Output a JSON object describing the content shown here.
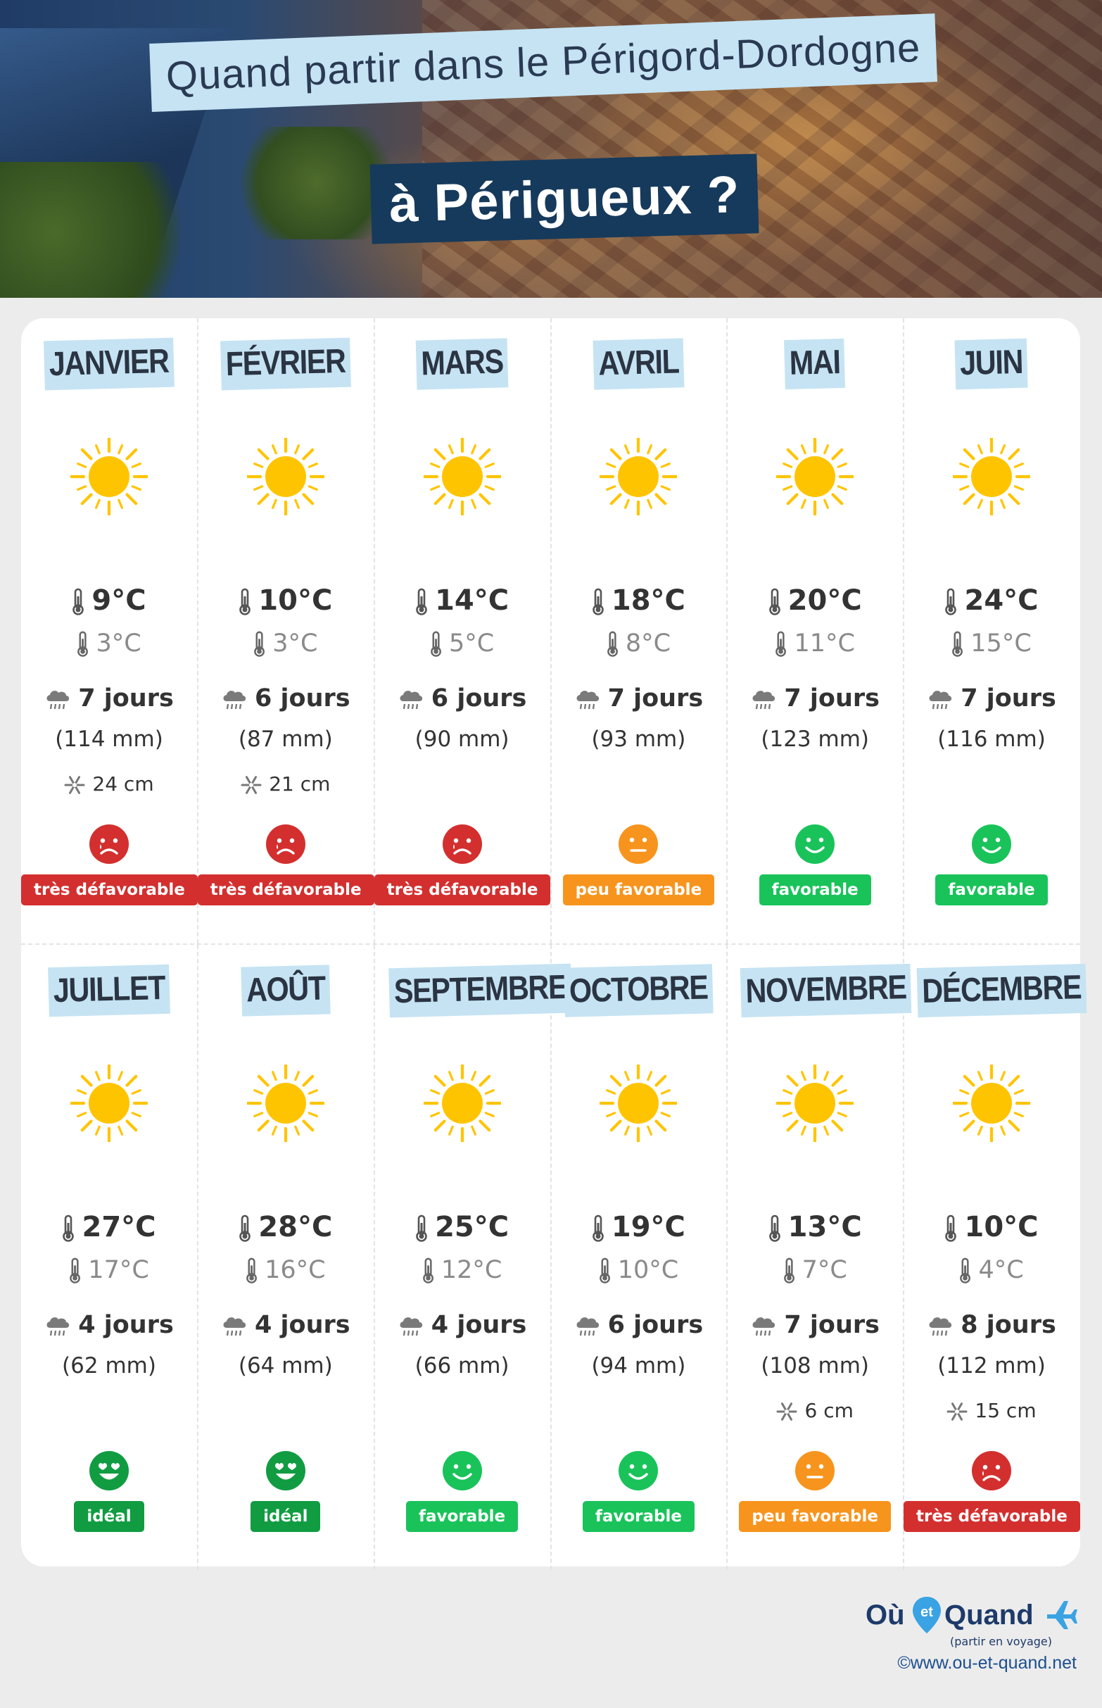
{
  "header": {
    "title_line1": "Quand partir dans le Périgord-Dordogne",
    "title_line2": "à Périgueux ?"
  },
  "colors": {
    "title_highlight": "#c5e3f3",
    "title_dark": "#163a5c",
    "sun": "#ffc400",
    "very_unfavorable": "#d32f2f",
    "little_favorable": "#f7941d",
    "favorable": "#19c35a",
    "ideal": "#119c42"
  },
  "months": [
    {
      "name": "JANVIER",
      "weather_icon": "sun-icon",
      "tmax": "9°C",
      "tmin": "3°C",
      "rain_days": "7 jours",
      "rain_mm": "(114 mm)",
      "snow": "24 cm",
      "rating": "très défavorable",
      "mood": "sad"
    },
    {
      "name": "FÉVRIER",
      "weather_icon": "sun-icon",
      "tmax": "10°C",
      "tmin": "3°C",
      "rain_days": "6 jours",
      "rain_mm": "(87 mm)",
      "snow": "21 cm",
      "rating": "très défavorable",
      "mood": "sad"
    },
    {
      "name": "MARS",
      "weather_icon": "sun-icon",
      "tmax": "14°C",
      "tmin": "5°C",
      "rain_days": "6 jours",
      "rain_mm": "(90 mm)",
      "snow": "",
      "rating": "très défavorable",
      "mood": "sad"
    },
    {
      "name": "AVRIL",
      "weather_icon": "sun-icon",
      "tmax": "18°C",
      "tmin": "8°C",
      "rain_days": "7 jours",
      "rain_mm": "(93 mm)",
      "snow": "",
      "rating": "peu favorable",
      "mood": "neutral"
    },
    {
      "name": "MAI",
      "weather_icon": "sun-icon",
      "tmax": "20°C",
      "tmin": "11°C",
      "rain_days": "7 jours",
      "rain_mm": "(123 mm)",
      "snow": "",
      "rating": "favorable",
      "mood": "happy"
    },
    {
      "name": "JUIN",
      "weather_icon": "sun-icon",
      "tmax": "24°C",
      "tmin": "15°C",
      "rain_days": "7 jours",
      "rain_mm": "(116 mm)",
      "snow": "",
      "rating": "favorable",
      "mood": "happy"
    },
    {
      "name": "JUILLET",
      "weather_icon": "sun-icon",
      "tmax": "27°C",
      "tmin": "17°C",
      "rain_days": "4 jours",
      "rain_mm": "(62 mm)",
      "snow": "",
      "rating": "idéal",
      "mood": "love"
    },
    {
      "name": "AOÛT",
      "weather_icon": "sun-icon",
      "tmax": "28°C",
      "tmin": "16°C",
      "rain_days": "4 jours",
      "rain_mm": "(64 mm)",
      "snow": "",
      "rating": "idéal",
      "mood": "love"
    },
    {
      "name": "SEPTEMBRE",
      "weather_icon": "sun-icon",
      "tmax": "25°C",
      "tmin": "12°C",
      "rain_days": "4 jours",
      "rain_mm": "(66 mm)",
      "snow": "",
      "rating": "favorable",
      "mood": "happy"
    },
    {
      "name": "OCTOBRE",
      "weather_icon": "sun-icon",
      "tmax": "19°C",
      "tmin": "10°C",
      "rain_days": "6 jours",
      "rain_mm": "(94 mm)",
      "snow": "",
      "rating": "favorable",
      "mood": "happy"
    },
    {
      "name": "NOVEMBRE",
      "weather_icon": "sun-icon",
      "tmax": "13°C",
      "tmin": "7°C",
      "rain_days": "7 jours",
      "rain_mm": "(108 mm)",
      "snow": "6 cm",
      "rating": "peu favorable",
      "mood": "neutral"
    },
    {
      "name": "DÉCEMBRE",
      "weather_icon": "sun-icon",
      "tmax": "10°C",
      "tmin": "4°C",
      "rain_days": "8 jours",
      "rain_mm": "(112 mm)",
      "snow": "15 cm",
      "rating": "très défavorable",
      "mood": "sad"
    }
  ],
  "footer": {
    "logo_word1": "Où",
    "logo_word_mid": "et",
    "logo_word2": "Quand",
    "logo_tagline": "(partir en voyage)",
    "credit": "©www.ou-et-quand.net"
  }
}
